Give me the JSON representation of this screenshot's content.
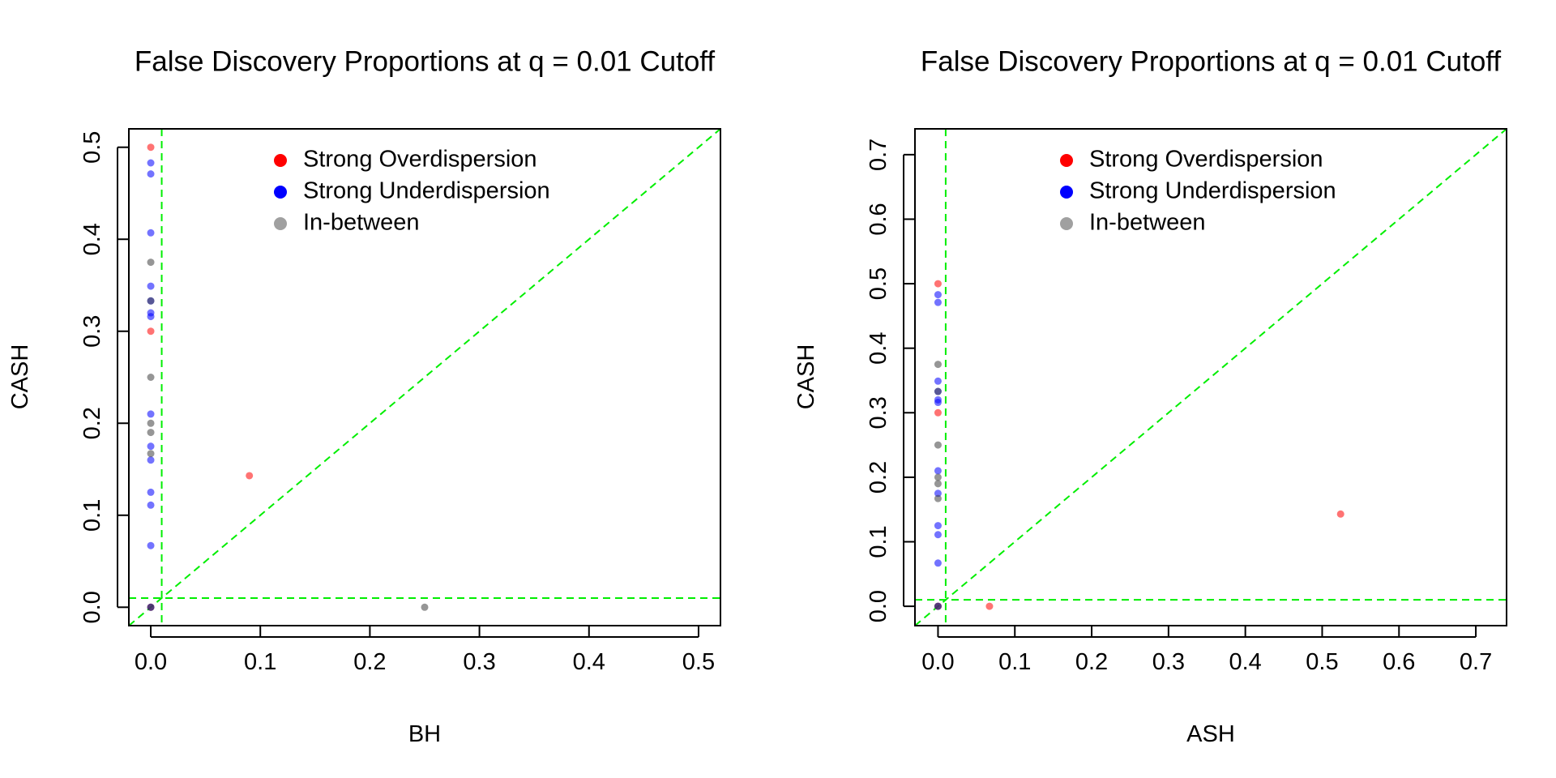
{
  "chart_data": [
    {
      "type": "scatter",
      "title": "False Discovery Proportions at q = 0.01 Cutoff",
      "xlabel": "BH",
      "ylabel": "CASH",
      "xlim": [
        -0.02,
        0.52
      ],
      "ylim": [
        -0.02,
        0.52
      ],
      "xticks": [
        "0.0",
        "0.1",
        "0.2",
        "0.3",
        "0.4",
        "0.5"
      ],
      "yticks": [
        "0.0",
        "0.1",
        "0.2",
        "0.3",
        "0.4",
        "0.5"
      ],
      "grid": false,
      "reference_lines": {
        "vertical": 0.01,
        "horizontal": 0.01,
        "diagonal": true,
        "color": "#00ee00"
      },
      "legend": {
        "position": "top",
        "entries": [
          {
            "label": "Strong Overdispersion",
            "color": "#ff0000"
          },
          {
            "label": "Strong Underdispersion",
            "color": "#0000ff"
          },
          {
            "label": "In-between",
            "color": "#a0a0a0"
          }
        ]
      },
      "series": [
        {
          "name": "Strong Overdispersion",
          "color": "#ff0000",
          "points": [
            [
              0,
              0.5
            ],
            [
              0,
              0.3
            ],
            [
              0.09,
              0.143
            ],
            [
              0,
              0
            ]
          ]
        },
        {
          "name": "Strong Underdispersion",
          "color": "#0000ff",
          "points": [
            [
              0,
              0.483
            ],
            [
              0,
              0.471
            ],
            [
              0,
              0.407
            ],
            [
              0,
              0.349
            ],
            [
              0,
              0.333
            ],
            [
              0,
              0.32
            ],
            [
              0,
              0.316
            ],
            [
              0,
              0.21
            ],
            [
              0,
              0.175
            ],
            [
              0,
              0.16
            ],
            [
              0,
              0.125
            ],
            [
              0,
              0.111
            ],
            [
              0,
              0.067
            ],
            [
              0,
              0
            ]
          ]
        },
        {
          "name": "In-between",
          "color": "#404040",
          "points": [
            [
              0,
              0.375
            ],
            [
              0,
              0.333
            ],
            [
              0,
              0.25
            ],
            [
              0,
              0.2
            ],
            [
              0,
              0.19
            ],
            [
              0,
              0.167
            ],
            [
              0.25,
              0
            ],
            [
              0,
              0
            ]
          ]
        }
      ]
    },
    {
      "type": "scatter",
      "title": "False Discovery Proportions at q = 0.01 Cutoff",
      "xlabel": "ASH",
      "ylabel": "CASH",
      "xlim": [
        -0.03,
        0.74
      ],
      "ylim": [
        -0.03,
        0.74
      ],
      "xticks": [
        "0.0",
        "0.1",
        "0.2",
        "0.3",
        "0.4",
        "0.5",
        "0.6",
        "0.7"
      ],
      "yticks": [
        "0.0",
        "0.1",
        "0.2",
        "0.3",
        "0.4",
        "0.5",
        "0.6",
        "0.7"
      ],
      "grid": false,
      "reference_lines": {
        "vertical": 0.01,
        "horizontal": 0.01,
        "diagonal": true,
        "color": "#00ee00"
      },
      "legend": {
        "position": "top",
        "entries": [
          {
            "label": "Strong Overdispersion",
            "color": "#ff0000"
          },
          {
            "label": "Strong Underdispersion",
            "color": "#0000ff"
          },
          {
            "label": "In-between",
            "color": "#a0a0a0"
          }
        ]
      },
      "series": [
        {
          "name": "Strong Overdispersion",
          "color": "#ff0000",
          "points": [
            [
              0,
              0.5
            ],
            [
              0,
              0.3
            ],
            [
              0.524,
              0.143
            ],
            [
              0.067,
              0
            ],
            [
              0,
              0
            ]
          ]
        },
        {
          "name": "Strong Underdispersion",
          "color": "#0000ff",
          "points": [
            [
              0,
              0.483
            ],
            [
              0,
              0.471
            ],
            [
              0,
              0.349
            ],
            [
              0,
              0.333
            ],
            [
              0,
              0.32
            ],
            [
              0,
              0.316
            ],
            [
              0,
              0.21
            ],
            [
              0,
              0.175
            ],
            [
              0,
              0.125
            ],
            [
              0,
              0.111
            ],
            [
              0,
              0.067
            ],
            [
              0,
              0
            ]
          ]
        },
        {
          "name": "In-between",
          "color": "#404040",
          "points": [
            [
              0,
              0.375
            ],
            [
              0,
              0.333
            ],
            [
              0,
              0.25
            ],
            [
              0,
              0.2
            ],
            [
              0,
              0.19
            ],
            [
              0,
              0.167
            ],
            [
              0,
              0
            ]
          ]
        }
      ]
    }
  ]
}
